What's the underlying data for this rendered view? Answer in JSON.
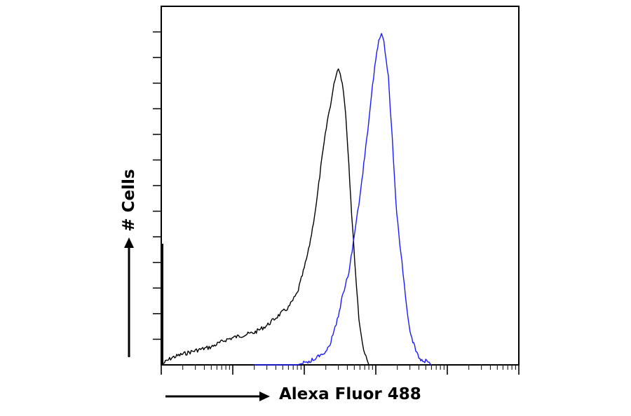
{
  "chart_data": {
    "type": "line",
    "subtype": "flow-cytometry-histogram",
    "xlabel": "Alexa Fluor 488",
    "ylabel": "# Cells",
    "xscale": "log",
    "xlim": [
      1,
      100000
    ],
    "ylim": [
      0,
      100
    ],
    "grid": false,
    "series": [
      {
        "color": "#000000",
        "x": [
          1.0,
          1.4,
          2.0,
          3.0,
          5.0,
          8.0,
          12,
          20,
          30,
          45,
          60,
          80,
          100,
          115,
          130,
          150,
          170,
          190,
          210,
          240,
          270,
          300,
          340,
          380,
          420,
          460,
          520,
          580,
          650,
          730,
          800
        ],
        "y": [
          0,
          2,
          3,
          4,
          5,
          7,
          8,
          9,
          11,
          14,
          16,
          20,
          27,
          32,
          38,
          46,
          55,
          62,
          68,
          74,
          80,
          83,
          79,
          70,
          56,
          42,
          26,
          13,
          6,
          2,
          0
        ]
      },
      {
        "color": "#1a1aff",
        "x": [
          20,
          40,
          80,
          120,
          180,
          220,
          260,
          300,
          350,
          420,
          500,
          600,
          700,
          800,
          900,
          1000,
          1100,
          1200,
          1300,
          1500,
          1700,
          1900,
          2100,
          2400,
          2700,
          3000,
          3500,
          4000,
          5000,
          6000
        ],
        "y": [
          0,
          0,
          0,
          1,
          3,
          5,
          9,
          14,
          20,
          26,
          36,
          47,
          58,
          68,
          78,
          85,
          91,
          92,
          90,
          80,
          63,
          46,
          36,
          26,
          16,
          9,
          5,
          2,
          1,
          0
        ]
      }
    ]
  }
}
